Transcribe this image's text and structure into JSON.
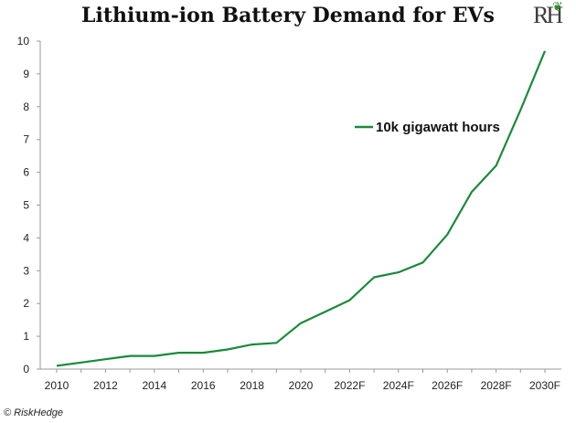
{
  "title": "Lithium-ion Battery Demand for EVs",
  "logo": {
    "text": "RH",
    "accent": "#2e8b2e"
  },
  "credit": "© RiskHedge",
  "colors": {
    "line": "#1a8a3a",
    "axis": "#999999"
  },
  "chart_data": {
    "type": "line",
    "title": "Lithium-ion Battery Demand for EVs",
    "xlabel": "",
    "ylabel": "",
    "x": [
      "2010",
      "2011",
      "2012",
      "2013",
      "2014",
      "2015",
      "2016",
      "2017",
      "2018",
      "2019",
      "2020",
      "2021",
      "2022F",
      "2023F",
      "2024F",
      "2025F",
      "2026F",
      "2027F",
      "2028F",
      "2029F",
      "2030F"
    ],
    "x_tick_labels": [
      "2010",
      "2012",
      "2014",
      "2016",
      "2018",
      "2020",
      "2022F",
      "2024F",
      "2026F",
      "2028F",
      "2030F"
    ],
    "ylim": [
      0,
      10
    ],
    "y_ticks": [
      0,
      1,
      2,
      3,
      4,
      5,
      6,
      7,
      8,
      9,
      10
    ],
    "grid": false,
    "legend_position": "upper-center-right",
    "series": [
      {
        "name": "10k gigawatt hours",
        "color": "#1a8a3a",
        "values": [
          0.1,
          0.2,
          0.3,
          0.4,
          0.4,
          0.5,
          0.5,
          0.6,
          0.75,
          0.8,
          1.4,
          1.75,
          2.1,
          2.8,
          2.95,
          3.25,
          4.1,
          5.4,
          6.2,
          7.9,
          9.7
        ]
      }
    ]
  }
}
